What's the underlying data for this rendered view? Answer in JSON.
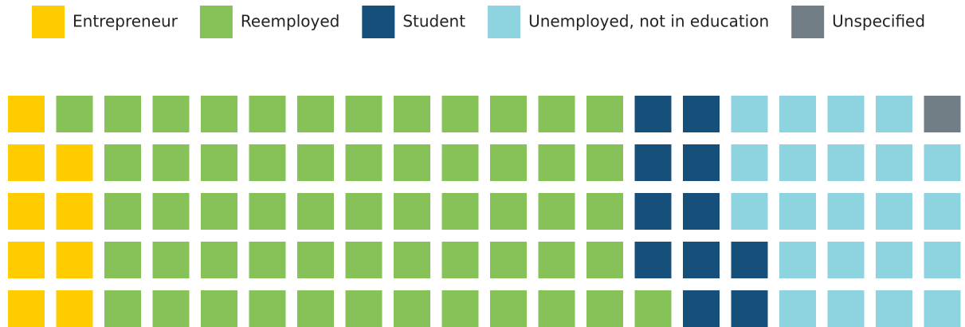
{
  "chart_data": {
    "type": "waffle",
    "series": [
      {
        "name": "Entrepreneur",
        "color": "#ffcc00",
        "value": 9
      },
      {
        "name": "Reemployed",
        "color": "#86c257",
        "value": 57
      },
      {
        "name": "Student",
        "color": "#154f7a",
        "value": 11
      },
      {
        "name": "Unemployed, not in education",
        "color": "#8dd4e0",
        "value": 22
      },
      {
        "name": "Unspecified",
        "color": "#717e86",
        "value": 1
      }
    ]
  }
}
